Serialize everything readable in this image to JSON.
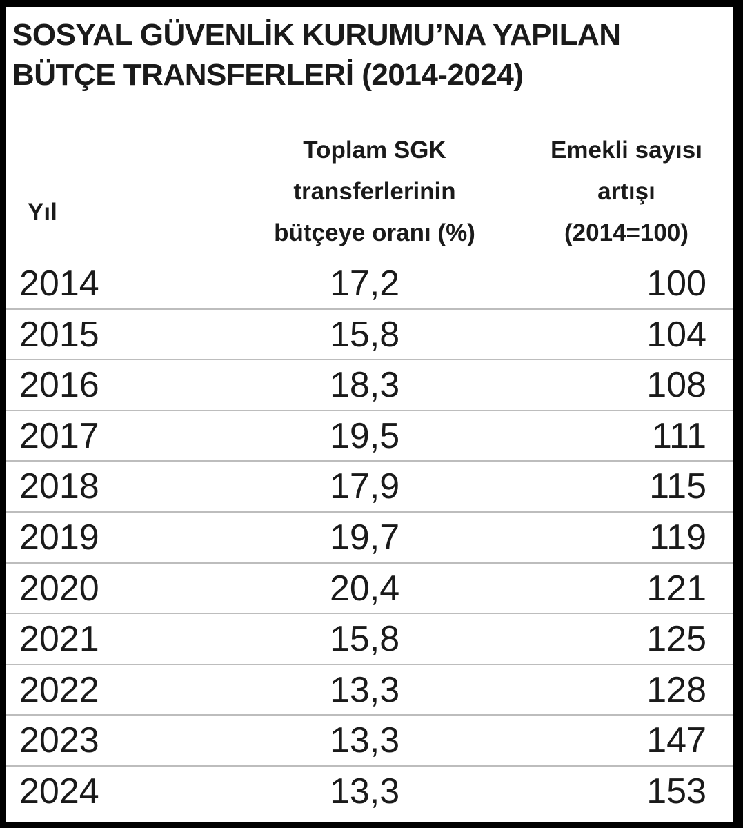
{
  "chart_data": {
    "type": "table",
    "title": [
      "SOSYAL GÜVENLİK KURUMU’NA YAPILAN",
      "BÜTÇE TRANSFERLERİ (2014-2024)"
    ],
    "columns": {
      "year": [
        "Yıl"
      ],
      "ratio": [
        "Toplam SGK",
        "transferlerinin",
        "bütçeye oranı (%)"
      ],
      "pensioners": [
        "Emekli sayısı",
        "artışı",
        "(2014=100)"
      ]
    },
    "rows": [
      {
        "year": "2014",
        "ratio": "17,2",
        "pensioners": "100"
      },
      {
        "year": "2015",
        "ratio": "15,8",
        "pensioners": "104"
      },
      {
        "year": "2016",
        "ratio": "18,3",
        "pensioners": "108"
      },
      {
        "year": "2017",
        "ratio": "19,5",
        "pensioners": "111"
      },
      {
        "year": "2018",
        "ratio": "17,9",
        "pensioners": "115"
      },
      {
        "year": "2019",
        "ratio": "19,7",
        "pensioners": "119"
      },
      {
        "year": "2020",
        "ratio": "20,4",
        "pensioners": "121"
      },
      {
        "year": "2021",
        "ratio": "15,8",
        "pensioners": "125"
      },
      {
        "year": "2022",
        "ratio": "13,3",
        "pensioners": "128"
      },
      {
        "year": "2023",
        "ratio": "13,3",
        "pensioners": "147"
      },
      {
        "year": "2024",
        "ratio": "13,3",
        "pensioners": "153"
      }
    ]
  },
  "colors": {
    "background": "#000000",
    "card": "#ffffff",
    "text": "#1a1a1a",
    "rule": "#bdbdbd"
  }
}
